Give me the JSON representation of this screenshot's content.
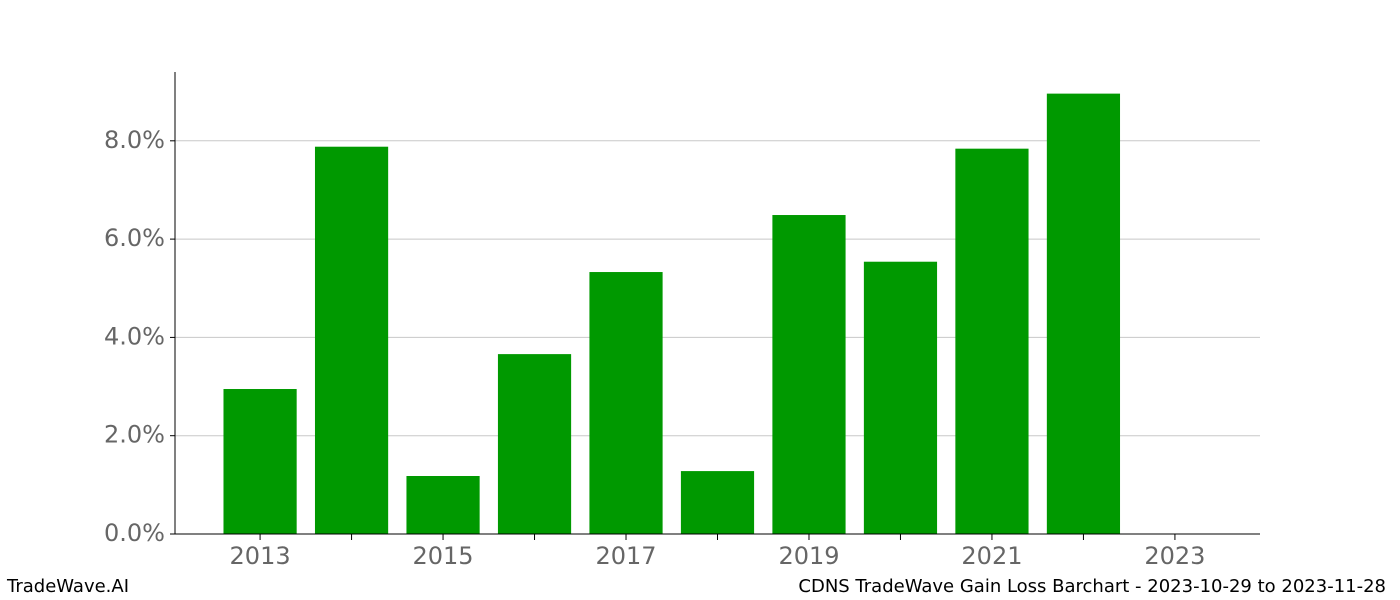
{
  "chart_data": {
    "type": "bar",
    "title": "CDNS TradeWave Gain Loss Barchart - 2023-10-29 to 2023-11-28",
    "source": "TradeWave.AI",
    "x": [
      2013,
      2014,
      2015,
      2016,
      2017,
      2018,
      2019,
      2020,
      2021,
      2022
    ],
    "values": [
      2.95,
      7.88,
      1.18,
      3.66,
      5.33,
      1.28,
      6.49,
      5.54,
      7.84,
      8.96
    ],
    "color": "#009900",
    "xlim": [
      2012.07,
      2023.93
    ],
    "xticks": [
      2013,
      2015,
      2017,
      2019,
      2021,
      2023
    ],
    "xminorticks": [
      2014,
      2016,
      2018,
      2020,
      2022
    ],
    "ylim": [
      0,
      9.4
    ],
    "yticks": [
      {
        "value": 0,
        "label": "0.0%"
      },
      {
        "value": 2,
        "label": "2.0%"
      },
      {
        "value": 4,
        "label": "4.0%"
      },
      {
        "value": 6,
        "label": "6.0%"
      },
      {
        "value": 8,
        "label": "8.0%"
      }
    ],
    "grid": true
  }
}
